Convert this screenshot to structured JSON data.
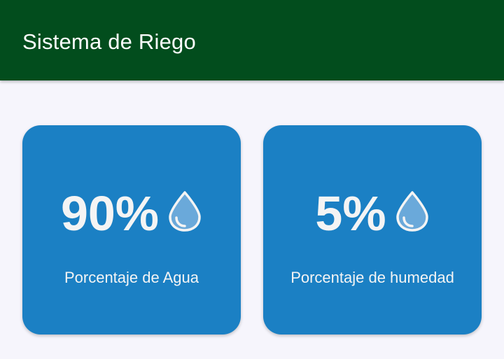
{
  "app_bar": {
    "title": "Sistema de Riego",
    "background_color": "#024d1d"
  },
  "cards": [
    {
      "value": "90%",
      "label": "Porcentaje de Agua",
      "icon": "water-drop-icon"
    },
    {
      "value": "5%",
      "label": "Porcentaje de humedad",
      "icon": "water-drop-icon"
    }
  ],
  "colors": {
    "card": "#1b80c4",
    "page": "#f6f5fc",
    "drop": "#6aa9da"
  }
}
